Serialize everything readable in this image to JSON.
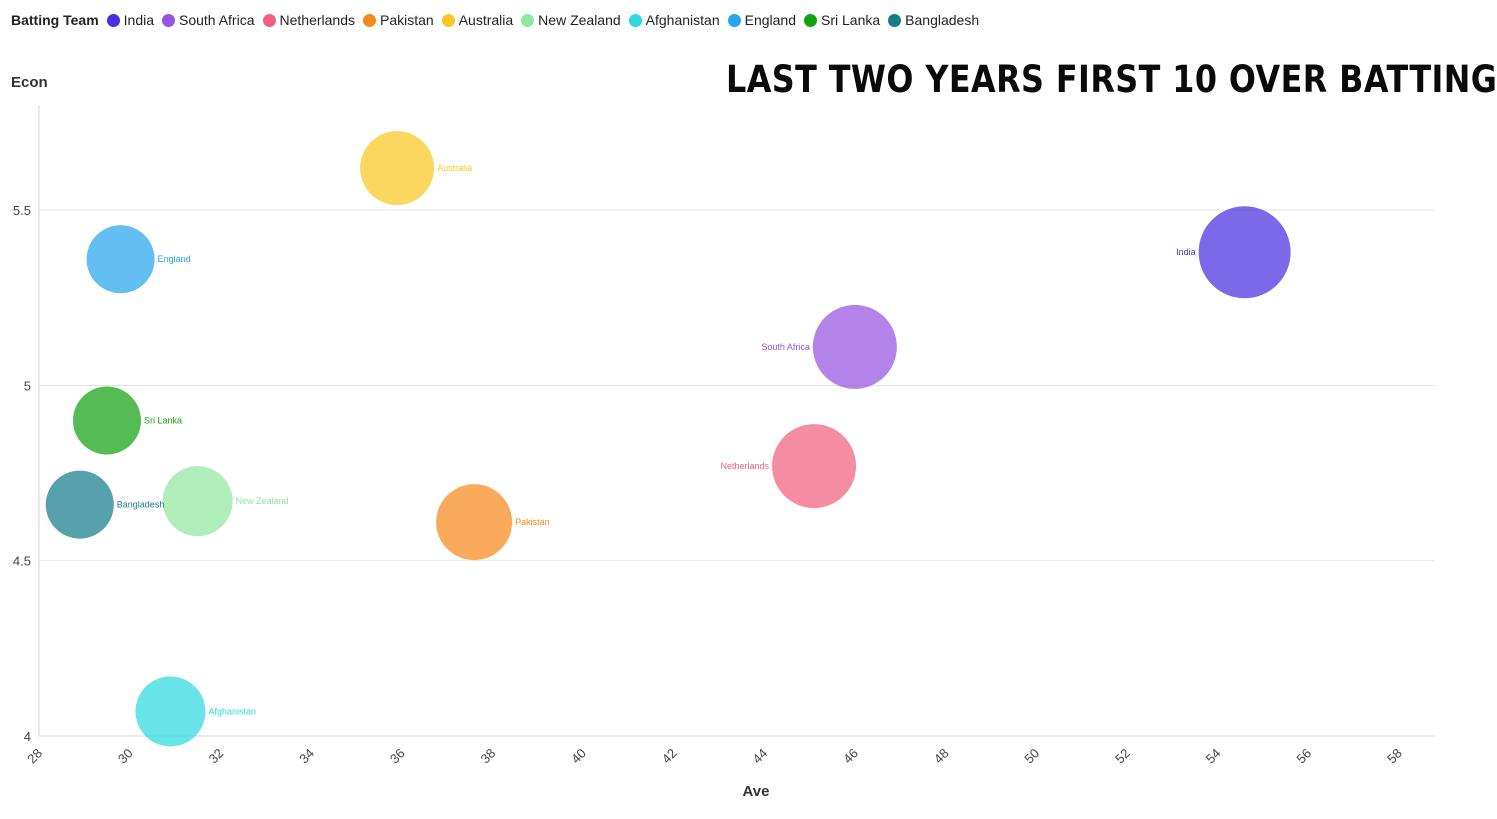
{
  "legend": {
    "title": "Batting Team"
  },
  "chart_data": {
    "type": "scatter",
    "title": "LAST TWO YEARS FIRST 10 OVER BATTING",
    "xlabel": "Ave",
    "ylabel": "Econ",
    "xlim": [
      28,
      58.8
    ],
    "ylim": [
      4,
      5.8
    ],
    "xticks": [
      28,
      30,
      32,
      34,
      36,
      38,
      40,
      42,
      44,
      46,
      48,
      50,
      52,
      54,
      56,
      58
    ],
    "yticks": [
      4,
      4.5,
      5,
      5.5
    ],
    "grid": "horizontal",
    "legend_position": "top-left",
    "series": [
      {
        "name": "India",
        "color": "#4a2fe0",
        "x": 54.6,
        "y": 5.38
      },
      {
        "name": "South Africa",
        "color": "#9553e0",
        "x": 46.0,
        "y": 5.11
      },
      {
        "name": "Netherlands",
        "color": "#f0607e",
        "x": 45.1,
        "y": 4.77
      },
      {
        "name": "Pakistan",
        "color": "#f5891a",
        "x": 37.6,
        "y": 4.61
      },
      {
        "name": "Australia",
        "color": "#f9c623",
        "x": 35.9,
        "y": 5.62
      },
      {
        "name": "New Zealand",
        "color": "#90e6a0",
        "x": 31.5,
        "y": 4.67
      },
      {
        "name": "Afghanistan",
        "color": "#2edadf",
        "x": 30.9,
        "y": 4.07
      },
      {
        "name": "England",
        "color": "#27a5ec",
        "x": 29.8,
        "y": 5.36
      },
      {
        "name": "Sri Lanka",
        "color": "#14a214",
        "x": 29.5,
        "y": 4.9
      },
      {
        "name": "Bangladesh",
        "color": "#157d8a",
        "x": 28.9,
        "y": 4.66
      }
    ]
  }
}
